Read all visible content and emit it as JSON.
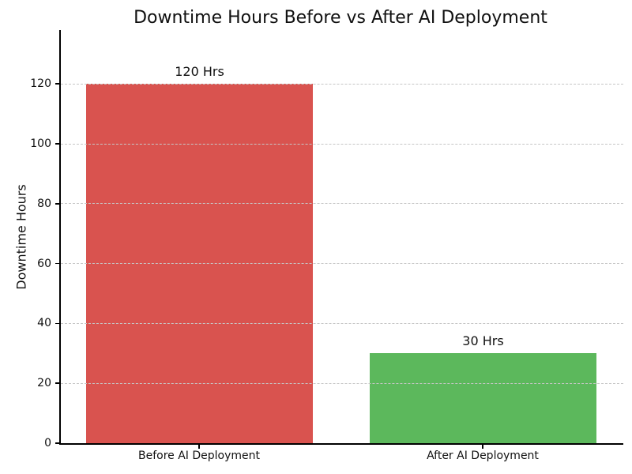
{
  "chart_data": {
    "type": "bar",
    "title": "Downtime Hours Before vs After AI Deployment",
    "xlabel": "",
    "ylabel": "Downtime Hours",
    "categories": [
      "Before AI Deployment",
      "After AI Deployment"
    ],
    "values": [
      120,
      30
    ],
    "value_labels": [
      "120 Hrs",
      "30 Hrs"
    ],
    "bar_colors": [
      "#d9534f",
      "#5cb85c"
    ],
    "yticks": [
      0,
      20,
      40,
      60,
      80,
      100,
      120
    ],
    "ylim": [
      0,
      138
    ],
    "grid": "horizontal-dashed",
    "grid_color": "#c6c6c6",
    "legend": "none"
  }
}
